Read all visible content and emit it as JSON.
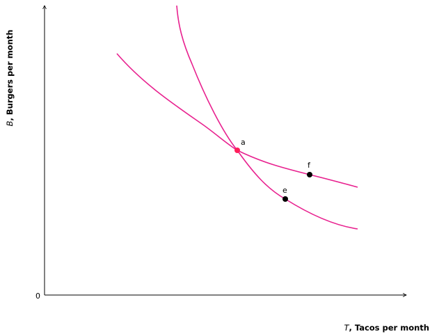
{
  "x_axis": {
    "variable": "T",
    "label": ", Tacos per month"
  },
  "y_axis": {
    "variable": "B",
    "label": ", Burgers per month"
  },
  "origin_label": "0",
  "points": [
    {
      "id": "a",
      "label": "a",
      "color": "#ff1f5a"
    },
    {
      "id": "e",
      "label": "e",
      "color": "#000000"
    },
    {
      "id": "f",
      "label": "f",
      "color": "#000000"
    }
  ],
  "curve_color": "#e8218f",
  "axis_color": "#000000"
}
